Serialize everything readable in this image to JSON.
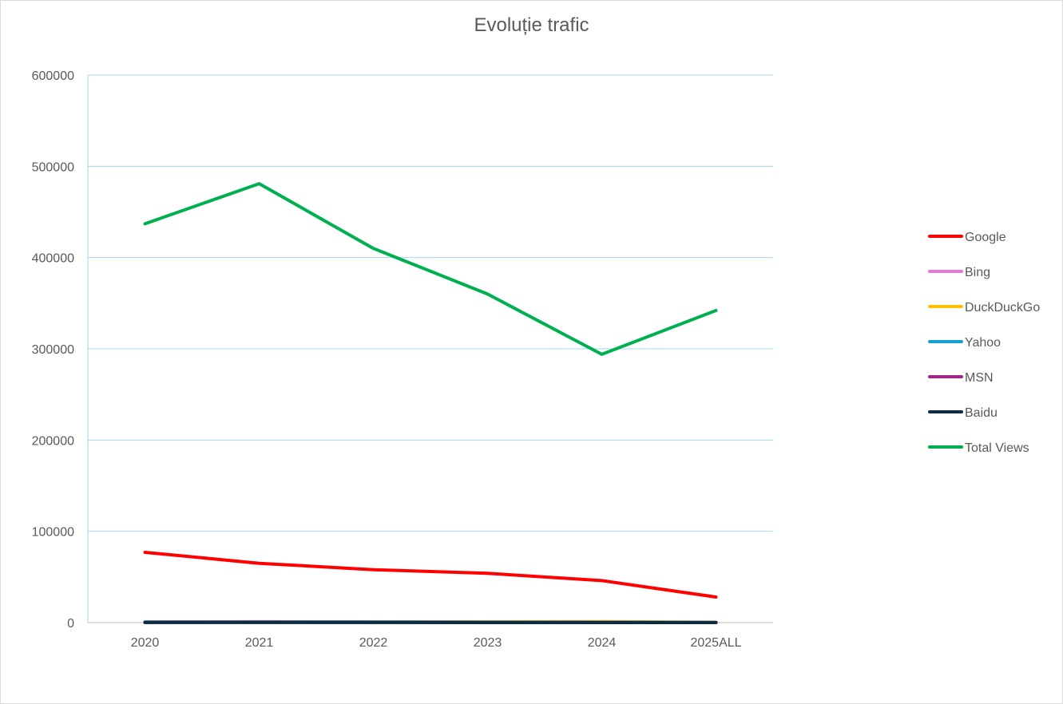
{
  "chart_data": {
    "type": "line",
    "title": "Evoluție trafic",
    "xlabel": "",
    "ylabel": "",
    "categories": [
      "2020",
      "2021",
      "2022",
      "2023",
      "2024",
      "2025ALL"
    ],
    "ylim": [
      0,
      600000
    ],
    "yticks": [
      "0",
      "100000",
      "200000",
      "300000",
      "400000",
      "500000",
      "600000"
    ],
    "grid": true,
    "legend_position": "right",
    "series": [
      {
        "name": "Google",
        "color": "#ff0000",
        "values": [
          77000,
          65000,
          58000,
          54000,
          46000,
          28000
        ]
      },
      {
        "name": "Bing",
        "color": "#e27ad6",
        "values": [
          800,
          1000,
          900,
          700,
          600,
          300
        ]
      },
      {
        "name": "DuckDuckGo",
        "color": "#ffc000",
        "values": [
          300,
          500,
          700,
          1000,
          1100,
          400
        ]
      },
      {
        "name": "Yahoo",
        "color": "#1a9fd4",
        "values": [
          600,
          800,
          700,
          500,
          400,
          200
        ]
      },
      {
        "name": "MSN",
        "color": "#9b2a8c",
        "values": [
          300,
          400,
          300,
          200,
          200,
          100
        ]
      },
      {
        "name": "Baidu",
        "color": "#0e2c40",
        "values": [
          50,
          80,
          60,
          40,
          30,
          20
        ]
      },
      {
        "name": "Total Views",
        "color": "#00b050",
        "values": [
          437000,
          481000,
          410000,
          360000,
          294000,
          342000
        ]
      }
    ]
  }
}
